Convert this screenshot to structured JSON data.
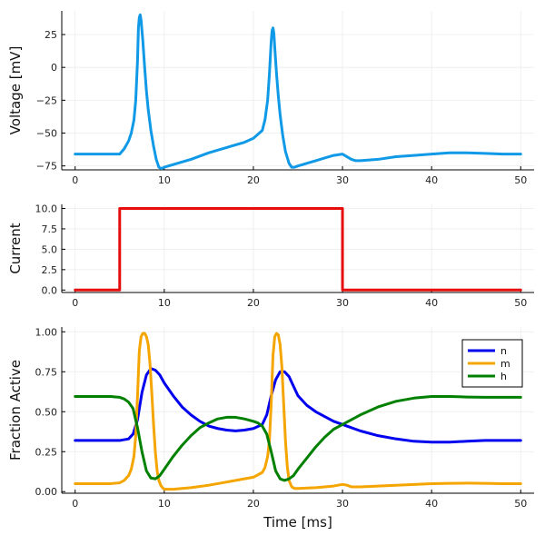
{
  "chart_data": [
    {
      "type": "line",
      "xlabel": "",
      "ylabel": "Voltage [mV]",
      "xlim": [
        -1.5,
        51.5
      ],
      "ylim": [
        -78,
        43
      ],
      "xticks": [
        0,
        10,
        20,
        30,
        40,
        50
      ],
      "yticks": [
        -75,
        -50,
        -25,
        0,
        25
      ],
      "grid": true,
      "legend": "none",
      "series": [
        {
          "color": "#0f99e6",
          "x": [
            0,
            4,
            5,
            5.5,
            6,
            6.3,
            6.6,
            6.8,
            7.0,
            7.1,
            7.2,
            7.3,
            7.4,
            7.6,
            7.8,
            8.0,
            8.2,
            8.5,
            8.8,
            9.1,
            9.4,
            9.7,
            10.0,
            11,
            13,
            15,
            17,
            19,
            20,
            21,
            21.3,
            21.6,
            21.8,
            22.0,
            22.1,
            22.2,
            22.3,
            22.4,
            22.6,
            22.8,
            23.0,
            23.3,
            23.6,
            24.0,
            24.3,
            24.6,
            25,
            26,
            27,
            28,
            29,
            30,
            30.5,
            31,
            31.5,
            32,
            34,
            36,
            38,
            40,
            42,
            44,
            46,
            48,
            50
          ],
          "y": [
            -66,
            -66,
            -66,
            -62,
            -56,
            -50,
            -40,
            -25,
            5,
            30,
            38,
            40,
            36,
            20,
            0,
            -18,
            -32,
            -48,
            -60,
            -70,
            -76,
            -77,
            -76,
            -74,
            -70,
            -65,
            -61,
            -57,
            -54,
            -48,
            -40,
            -25,
            -5,
            20,
            28,
            30,
            26,
            15,
            -5,
            -22,
            -36,
            -52,
            -64,
            -73,
            -76,
            -76,
            -75,
            -73,
            -71,
            -69,
            -67,
            -66,
            -68,
            -70,
            -71,
            -71,
            -70,
            -68,
            -67,
            -66,
            -65,
            -65,
            -65.5,
            -66,
            -66
          ]
        }
      ]
    },
    {
      "type": "line",
      "xlabel": "",
      "ylabel": "Current",
      "xlim": [
        -1.5,
        51.5
      ],
      "ylim": [
        -0.3,
        10.5
      ],
      "xticks": [
        0,
        10,
        20,
        30,
        40,
        50
      ],
      "yticks": [
        0.0,
        2.5,
        5.0,
        7.5,
        10.0
      ],
      "ytick_labels": [
        "0.0",
        "2.5",
        "5.0",
        "7.5",
        "10.0"
      ],
      "grid": true,
      "legend": "none",
      "series": [
        {
          "color": "#e60d0d",
          "x": [
            0,
            5,
            5,
            30,
            30,
            50
          ],
          "y": [
            0,
            0,
            10,
            10,
            0,
            0
          ]
        }
      ]
    },
    {
      "type": "line",
      "xlabel": "Time [ms]",
      "ylabel": "Fraction Active",
      "xlim": [
        -1.5,
        51.5
      ],
      "ylim": [
        -0.01,
        1.03
      ],
      "xticks": [
        0,
        10,
        20,
        30,
        40,
        50
      ],
      "yticks": [
        0.0,
        0.25,
        0.5,
        0.75,
        1.0
      ],
      "ytick_labels": [
        "0.00",
        "0.25",
        "0.50",
        "0.75",
        "1.00"
      ],
      "grid": true,
      "legend": "top-right",
      "series": [
        {
          "name": "n",
          "color": "#0000ee",
          "x": [
            0,
            4,
            5,
            6,
            6.5,
            7,
            7.5,
            8,
            8.5,
            9,
            9.5,
            10,
            11,
            12,
            13,
            14,
            15,
            16,
            17,
            18,
            19,
            20,
            21,
            21.5,
            22,
            22.5,
            23,
            23.5,
            24,
            24.5,
            25,
            26,
            27,
            28,
            29,
            30,
            32,
            34,
            36,
            38,
            40,
            42,
            44,
            46,
            48,
            50
          ],
          "y": [
            0.32,
            0.32,
            0.32,
            0.33,
            0.36,
            0.45,
            0.62,
            0.73,
            0.77,
            0.76,
            0.73,
            0.68,
            0.6,
            0.53,
            0.48,
            0.44,
            0.41,
            0.395,
            0.385,
            0.38,
            0.385,
            0.395,
            0.42,
            0.48,
            0.6,
            0.7,
            0.75,
            0.75,
            0.72,
            0.66,
            0.6,
            0.54,
            0.5,
            0.47,
            0.44,
            0.42,
            0.38,
            0.35,
            0.33,
            0.315,
            0.31,
            0.31,
            0.315,
            0.32,
            0.32,
            0.32
          ]
        },
        {
          "name": "m",
          "color": "#f5a500",
          "x": [
            0,
            4,
            5,
            5.5,
            6,
            6.3,
            6.6,
            6.8,
            7.0,
            7.2,
            7.4,
            7.6,
            7.8,
            8.0,
            8.2,
            8.4,
            8.6,
            8.8,
            9.0,
            9.2,
            9.4,
            9.6,
            9.8,
            10,
            11,
            13,
            15,
            17,
            19,
            20,
            21,
            21.3,
            21.6,
            21.8,
            22.0,
            22.2,
            22.4,
            22.6,
            22.8,
            23.0,
            23.2,
            23.4,
            23.6,
            23.8,
            24.0,
            24.3,
            24.6,
            25,
            27,
            29,
            30,
            30.5,
            31,
            32,
            34,
            36,
            38,
            40,
            42,
            44,
            46,
            48,
            50
          ],
          "y": [
            0.05,
            0.05,
            0.055,
            0.07,
            0.1,
            0.14,
            0.22,
            0.35,
            0.6,
            0.88,
            0.97,
            0.99,
            0.99,
            0.97,
            0.92,
            0.8,
            0.62,
            0.42,
            0.25,
            0.13,
            0.07,
            0.04,
            0.025,
            0.015,
            0.015,
            0.025,
            0.04,
            0.06,
            0.08,
            0.09,
            0.12,
            0.15,
            0.22,
            0.32,
            0.55,
            0.85,
            0.97,
            0.99,
            0.98,
            0.92,
            0.78,
            0.55,
            0.32,
            0.16,
            0.07,
            0.03,
            0.02,
            0.02,
            0.025,
            0.035,
            0.045,
            0.04,
            0.03,
            0.03,
            0.035,
            0.04,
            0.045,
            0.05,
            0.052,
            0.053,
            0.052,
            0.05,
            0.05
          ]
        },
        {
          "name": "h",
          "color": "#008000",
          "x": [
            0,
            4,
            5,
            5.5,
            6,
            6.5,
            7,
            7.5,
            8,
            8.5,
            9,
            9.5,
            10,
            11,
            12,
            13,
            14,
            15,
            16,
            17,
            18,
            19,
            20,
            20.5,
            21,
            21.5,
            22,
            22.5,
            23,
            23.5,
            24,
            24.5,
            25,
            26,
            27,
            28,
            29,
            30,
            32,
            34,
            36,
            38,
            40,
            42,
            44,
            46,
            48,
            50
          ],
          "y": [
            0.595,
            0.595,
            0.59,
            0.58,
            0.56,
            0.52,
            0.4,
            0.25,
            0.13,
            0.085,
            0.08,
            0.1,
            0.14,
            0.22,
            0.29,
            0.35,
            0.4,
            0.43,
            0.455,
            0.465,
            0.465,
            0.455,
            0.44,
            0.43,
            0.41,
            0.36,
            0.25,
            0.13,
            0.08,
            0.07,
            0.08,
            0.1,
            0.14,
            0.21,
            0.28,
            0.34,
            0.39,
            0.42,
            0.48,
            0.53,
            0.565,
            0.585,
            0.595,
            0.595,
            0.592,
            0.59,
            0.59,
            0.59
          ]
        }
      ]
    }
  ]
}
